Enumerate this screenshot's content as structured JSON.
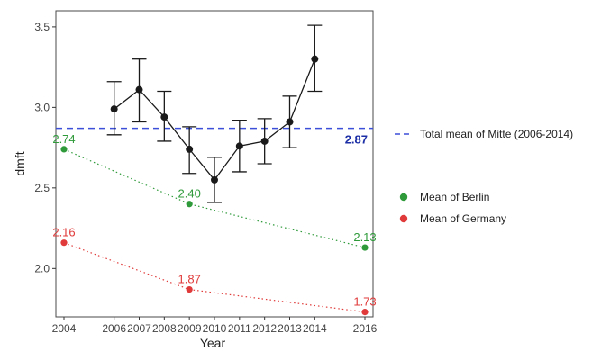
{
  "chart_data": {
    "type": "line",
    "xlabel": "Year",
    "ylabel": "dmft",
    "x_ticks": [
      "2004",
      "2006",
      "2007",
      "2008",
      "2009",
      "2010",
      "2011",
      "2012",
      "2013",
      "2014",
      "2016"
    ],
    "ylim": [
      1.7,
      3.6
    ],
    "y_ticks": [
      "2.0",
      "2.5",
      "3.0",
      "3.5"
    ],
    "grid": false,
    "legend_position": "right",
    "colors": {
      "mitte": "#1a1a1a",
      "total_mean": "#3b4fd8",
      "berlin": "#2e9a3a",
      "germany": "#e03a3a"
    },
    "series": [
      {
        "key": "mitte",
        "style": "solid-with-errorbars",
        "points": [
          {
            "x": "2006",
            "y": 2.99,
            "lower": 2.83,
            "upper": 3.16
          },
          {
            "x": "2007",
            "y": 3.11,
            "lower": 2.91,
            "upper": 3.3
          },
          {
            "x": "2008",
            "y": 2.94,
            "lower": 2.79,
            "upper": 3.1
          },
          {
            "x": "2009",
            "y": 2.74,
            "lower": 2.59,
            "upper": 2.88
          },
          {
            "x": "2010",
            "y": 2.55,
            "lower": 2.41,
            "upper": 2.69
          },
          {
            "x": "2011",
            "y": 2.76,
            "lower": 2.6,
            "upper": 2.92
          },
          {
            "x": "2012",
            "y": 2.79,
            "lower": 2.65,
            "upper": 2.93
          },
          {
            "x": "2013",
            "y": 2.91,
            "lower": 2.75,
            "upper": 3.07
          },
          {
            "x": "2014",
            "y": 3.3,
            "lower": 3.1,
            "upper": 3.51
          }
        ]
      },
      {
        "key": "berlin",
        "name": "Mean of Berlin",
        "style": "dotted",
        "points": [
          {
            "x": "2004",
            "y": 2.74,
            "label": "2.74"
          },
          {
            "x": "2009",
            "y": 2.4,
            "label": "2.40"
          },
          {
            "x": "2016",
            "y": 2.13,
            "label": "2.13"
          }
        ]
      },
      {
        "key": "germany",
        "name": "Mean of Germany",
        "style": "dotted",
        "points": [
          {
            "x": "2004",
            "y": 2.16,
            "label": "2.16"
          },
          {
            "x": "2009",
            "y": 1.87,
            "label": "1.87"
          },
          {
            "x": "2016",
            "y": 1.73,
            "label": "1.73"
          }
        ]
      }
    ],
    "reference_line": {
      "name": "Total mean of Mitte (2006-2014)",
      "y": 2.87,
      "label": "2.87"
    }
  }
}
